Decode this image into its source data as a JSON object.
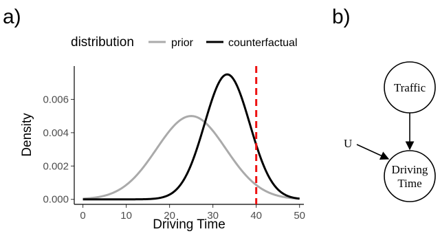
{
  "panels": {
    "a": "a)",
    "b": "b)"
  },
  "chart_data": {
    "type": "line",
    "xlabel": "Driving Time",
    "ylabel": "Density",
    "xlim": [
      -2,
      51
    ],
    "ylim": [
      -0.0003,
      0.008
    ],
    "xticks": [
      0,
      10,
      20,
      30,
      40,
      50
    ],
    "yticks": [
      0.0,
      0.002,
      0.004,
      0.006
    ],
    "ytick_labels": [
      "0.000",
      "0.002",
      "0.004",
      "0.006"
    ],
    "legend": {
      "title": "distribution",
      "position": "top"
    },
    "series": [
      {
        "name": "prior",
        "color": "#aaaaaa",
        "mean": 25,
        "sd": 8,
        "peak": 0.005,
        "x_range": [
          0,
          50
        ]
      },
      {
        "name": "counterfactual",
        "color": "#000000",
        "mean": 33.3,
        "sd": 5.2,
        "peak": 0.0075,
        "x_range": [
          0,
          50
        ]
      }
    ],
    "reference_line": {
      "x": 40,
      "color": "#ee1111",
      "style": "dashed"
    },
    "grid": false
  },
  "dag": {
    "nodes": {
      "traffic": "Traffic",
      "driving_time": [
        "Driving",
        "Time"
      ],
      "u": "U"
    },
    "edges": [
      [
        "Traffic",
        "Driving Time"
      ],
      [
        "U",
        "Driving Time"
      ]
    ]
  }
}
